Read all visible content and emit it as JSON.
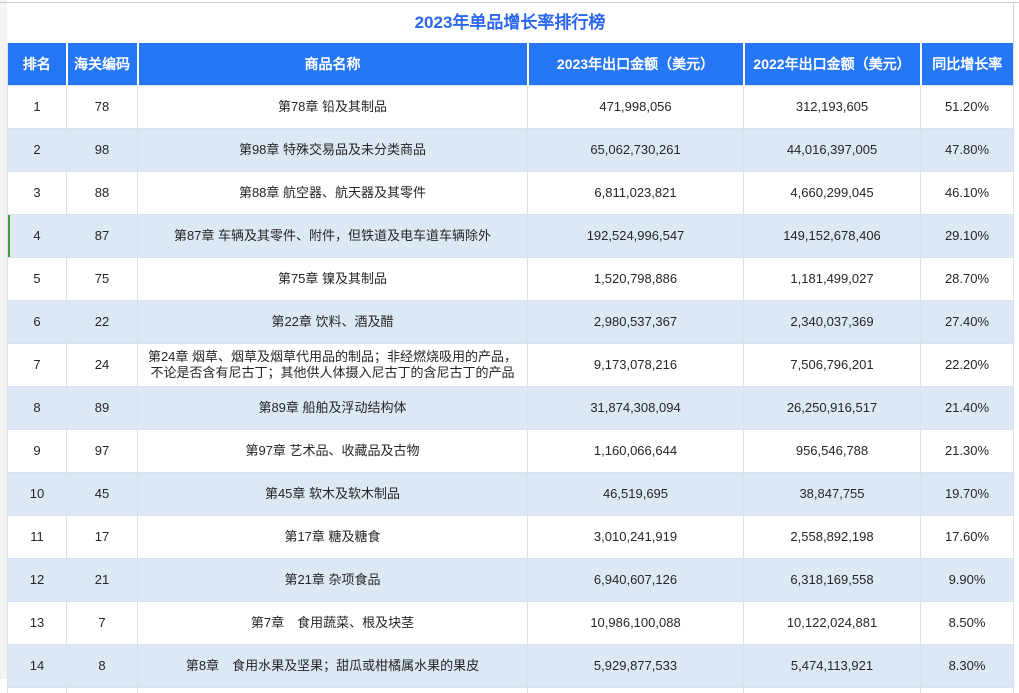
{
  "title": "2023年单品增长率排行榜",
  "table": {
    "columns": [
      "排名",
      "海关编码",
      "商品名称",
      "2023年出口金额（美元）",
      "2022年出口金额（美元）",
      "同比增长率"
    ],
    "rows": [
      {
        "rank": "1",
        "hs_code": "78",
        "name": "第78章 铅及其制品",
        "export_2023": "471,998,056",
        "export_2022": "312,193,605",
        "growth": "51.20%"
      },
      {
        "rank": "2",
        "hs_code": "98",
        "name": "第98章 特殊交易品及未分类商品",
        "export_2023": "65,062,730,261",
        "export_2022": "44,016,397,005",
        "growth": "47.80%"
      },
      {
        "rank": "3",
        "hs_code": "88",
        "name": "第88章 航空器、航天器及其零件",
        "export_2023": "6,811,023,821",
        "export_2022": "4,660,299,045",
        "growth": "46.10%"
      },
      {
        "rank": "4",
        "hs_code": "87",
        "name": "第87章 车辆及其零件、附件，但铁道及电车道车辆除外",
        "export_2023": "192,524,996,547",
        "export_2022": "149,152,678,406",
        "growth": "29.10%"
      },
      {
        "rank": "5",
        "hs_code": "75",
        "name": "第75章 镍及其制品",
        "export_2023": "1,520,798,886",
        "export_2022": "1,181,499,027",
        "growth": "28.70%"
      },
      {
        "rank": "6",
        "hs_code": "22",
        "name": "第22章 饮料、酒及醋",
        "export_2023": "2,980,537,367",
        "export_2022": "2,340,037,369",
        "growth": "27.40%"
      },
      {
        "rank": "7",
        "hs_code": "24",
        "name": "第24章 烟草、烟草及烟草代用品的制品；非经燃烧吸用的产品，不论是否含有尼古丁；其他供人体摄入尼古丁的含尼古丁的产品",
        "export_2023": "9,173,078,216",
        "export_2022": "7,506,796,201",
        "growth": "22.20%"
      },
      {
        "rank": "8",
        "hs_code": "89",
        "name": "第89章 船舶及浮动结构体",
        "export_2023": "31,874,308,094",
        "export_2022": "26,250,916,517",
        "growth": "21.40%"
      },
      {
        "rank": "9",
        "hs_code": "97",
        "name": "第97章 艺术品、收藏品及古物",
        "export_2023": "1,160,066,644",
        "export_2022": "956,546,788",
        "growth": "21.30%"
      },
      {
        "rank": "10",
        "hs_code": "45",
        "name": "第45章 软木及软木制品",
        "export_2023": "46,519,695",
        "export_2022": "38,847,755",
        "growth": "19.70%"
      },
      {
        "rank": "11",
        "hs_code": "17",
        "name": "第17章 糖及糖食",
        "export_2023": "3,010,241,919",
        "export_2022": "2,558,892,198",
        "growth": "17.60%"
      },
      {
        "rank": "12",
        "hs_code": "21",
        "name": "第21章 杂项食品",
        "export_2023": "6,940,607,126",
        "export_2022": "6,318,169,558",
        "growth": "9.90%"
      },
      {
        "rank": "13",
        "hs_code": "7",
        "name": "第7章　食用蔬菜、根及块茎",
        "export_2023": "10,986,100,088",
        "export_2022": "10,122,024,881",
        "growth": "8.50%"
      },
      {
        "rank": "14",
        "hs_code": "8",
        "name": "第8章　食用水果及坚果；甜瓜或柑橘属水果的果皮",
        "export_2023": "5,929,877,533",
        "export_2022": "5,474,113,921",
        "growth": "8.30%"
      }
    ],
    "highlight": {
      "row_rank": "4",
      "marker_color": "#44993d"
    }
  },
  "colors": {
    "title_text": "#2b66ee",
    "header_bg": "#2677f6",
    "header_text": "#ffffff",
    "alt_row_bg": "#dce9f5",
    "row_bg": "#ffffff",
    "body_text": "#262626",
    "grid_line": "#d9e2ec",
    "row_marker_green": "#44993d"
  }
}
